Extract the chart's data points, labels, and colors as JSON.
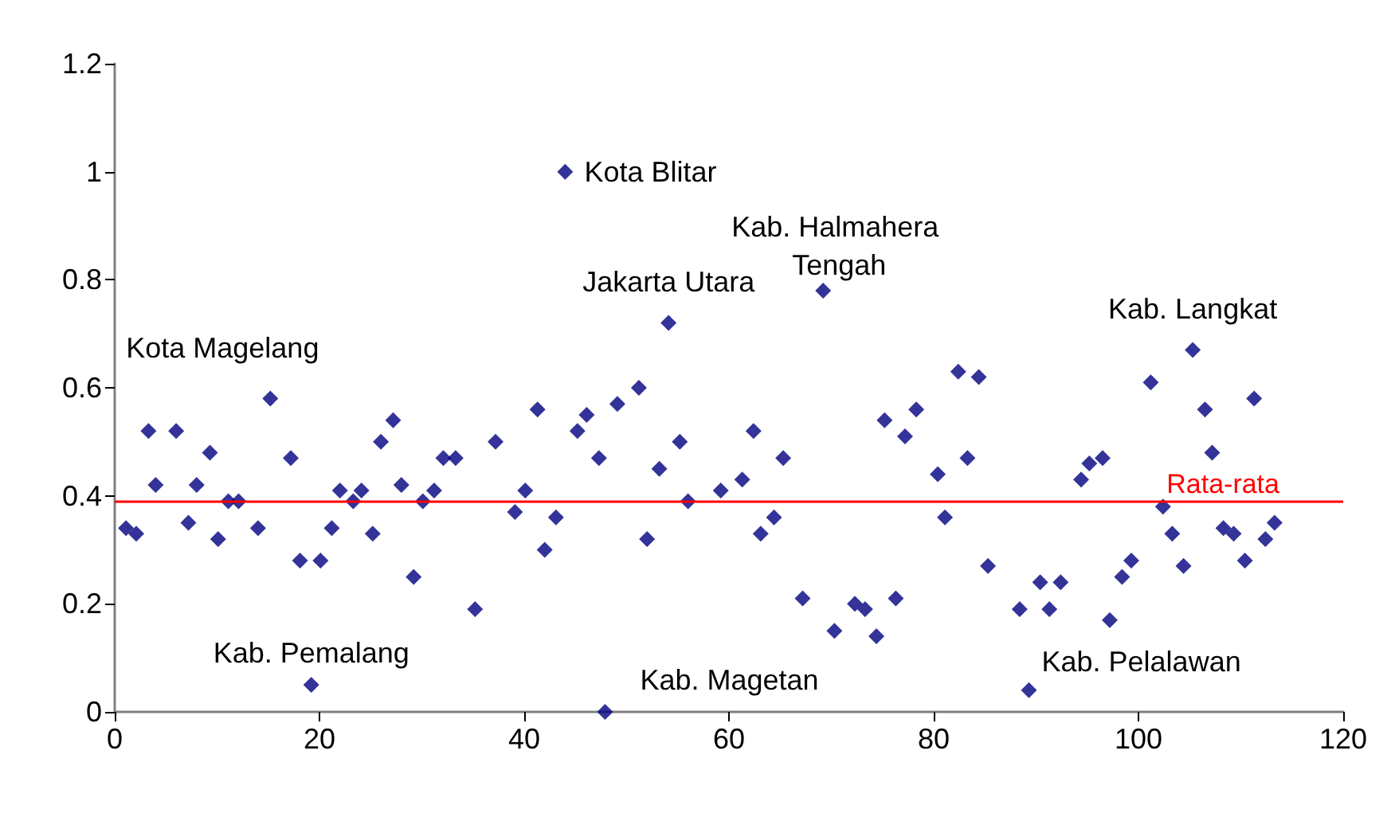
{
  "chart_data": {
    "type": "scatter",
    "marker": "diamond",
    "xlim": [
      0,
      120
    ],
    "xticks": [
      0,
      20,
      40,
      60,
      80,
      100,
      120
    ],
    "ylim": [
      0,
      1.2
    ],
    "yticks": [
      0,
      0.2,
      0.4,
      0.6,
      0.8,
      1,
      1.2
    ],
    "series": [
      {
        "color": "#000080",
        "x": [
          1.1,
          2.1,
          3.3,
          4.0,
          6.0,
          7.2,
          8.0,
          9.3,
          10.1,
          11.1,
          12.1,
          14.0,
          15.2,
          17.2,
          18.1,
          19.2,
          20.1,
          21.2,
          22.0,
          23.3,
          24.1,
          25.2,
          26.0,
          27.2,
          28.0,
          29.2,
          30.1,
          31.2,
          32.1,
          33.3,
          35.2,
          37.2,
          39.1,
          40.1,
          41.3,
          42.0,
          43.1,
          44.0,
          45.2,
          46.1,
          47.3,
          47.9,
          49.1,
          51.2,
          52.0,
          53.2,
          54.1,
          55.2,
          56.0,
          59.2,
          61.3,
          62.4,
          63.1,
          64.4,
          65.3,
          67.2,
          69.2,
          70.3,
          72.3,
          73.3,
          74.4,
          75.2,
          76.3,
          77.2,
          78.3,
          80.4,
          81.1,
          82.4,
          83.3,
          84.4,
          85.3,
          88.4,
          89.3,
          90.4,
          91.3,
          92.4,
          94.4,
          95.2,
          96.5,
          97.2,
          98.4,
          99.3,
          101.2,
          102.4,
          103.3,
          104.4,
          105.3,
          106.5,
          107.2,
          108.3,
          109.3,
          110.4,
          111.3,
          112.4,
          113.3
        ],
        "values": [
          0.34,
          0.33,
          0.52,
          0.42,
          0.52,
          0.35,
          0.42,
          0.48,
          0.32,
          0.39,
          0.39,
          0.34,
          0.58,
          0.47,
          0.28,
          0.05,
          0.28,
          0.34,
          0.41,
          0.39,
          0.41,
          0.33,
          0.5,
          0.54,
          0.42,
          0.25,
          0.39,
          0.41,
          0.47,
          0.47,
          0.19,
          0.5,
          0.37,
          0.41,
          0.56,
          0.3,
          0.36,
          1.0,
          0.52,
          0.55,
          0.47,
          0.0,
          0.57,
          0.6,
          0.32,
          0.45,
          0.72,
          0.5,
          0.39,
          0.41,
          0.43,
          0.52,
          0.33,
          0.36,
          0.47,
          0.21,
          0.78,
          0.15,
          0.2,
          0.19,
          0.14,
          0.54,
          0.21,
          0.51,
          0.56,
          0.44,
          0.36,
          0.63,
          0.47,
          0.62,
          0.27,
          0.19,
          0.04,
          0.24,
          0.19,
          0.24,
          0.43,
          0.46,
          0.47,
          0.17,
          0.25,
          0.28,
          0.61,
          0.38,
          0.33,
          0.27,
          0.67,
          0.56,
          0.48,
          0.34,
          0.33,
          0.28,
          0.58,
          0.32,
          0.35
        ]
      }
    ],
    "ref_lines": [
      {
        "axis": "y",
        "value": 0.39,
        "label": "Rata-rata",
        "color": "#ff0000"
      }
    ],
    "annotations": [
      {
        "text": "Kota Blitar",
        "x": 44.0,
        "y": 1.0
      },
      {
        "text": "Jakarta Utara",
        "x": 54.1,
        "y": 0.72
      },
      {
        "text": "Kab. Halmahera Tengah",
        "x": 69.2,
        "y": 0.78
      },
      {
        "text": "Kota Magelang",
        "x": 15.2,
        "y": 0.58
      },
      {
        "text": "Kab. Pemalang",
        "x": 19.2,
        "y": 0.05
      },
      {
        "text": "Kab. Magetan",
        "x": 47.9,
        "y": 0.0
      },
      {
        "text": "Kab. Langkat",
        "x": 105.3,
        "y": 0.67
      },
      {
        "text": "Kab. Pelalawan",
        "x": 89.3,
        "y": 0.04
      }
    ]
  }
}
